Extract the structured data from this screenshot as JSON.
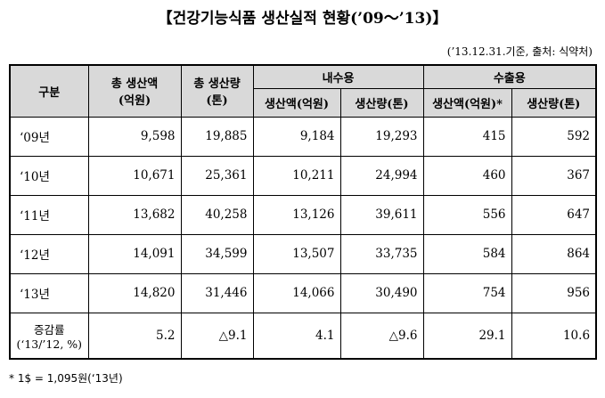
{
  "title": "【건강기능식품 생산실적 현황(’09～’13)】",
  "note": "(’13.12.31.기준, 출처: 식약처)",
  "table": {
    "header": {
      "group": "구분",
      "total_value": [
        "총 생산액",
        "(억원)"
      ],
      "total_volume": [
        "총 생산량",
        "(톤)"
      ],
      "domestic": "내수용",
      "export": "수출용",
      "sub": [
        "생산액(억원)",
        "생산량(톤)",
        "생산액(억원)*",
        "생산량(톤)"
      ]
    },
    "rows": [
      {
        "label": [
          "‘09년"
        ],
        "cells": [
          "9,598",
          "19,885",
          "9,184",
          "19,293",
          "415",
          "592"
        ]
      },
      {
        "label": [
          "‘10년"
        ],
        "cells": [
          "10,671",
          "25,361",
          "10,211",
          "24,994",
          "460",
          "367"
        ]
      },
      {
        "label": [
          "‘11년"
        ],
        "cells": [
          "13,682",
          "40,258",
          "13,126",
          "39,611",
          "556",
          "647"
        ]
      },
      {
        "label": [
          "‘12년"
        ],
        "cells": [
          "14,091",
          "34,599",
          "13,507",
          "33,735",
          "584",
          "864"
        ]
      },
      {
        "label": [
          "‘13년"
        ],
        "cells": [
          "14,820",
          "31,446",
          "14,066",
          "30,490",
          "754",
          "956"
        ]
      },
      {
        "label": [
          "증감률",
          "(‘13/’12, %)"
        ],
        "cells": [
          "5.2",
          "△9.1",
          "4.1",
          "△9.6",
          "29.1",
          "10.6"
        ]
      }
    ]
  },
  "footnote": "* 1$ = 1,095원(‘13년)"
}
